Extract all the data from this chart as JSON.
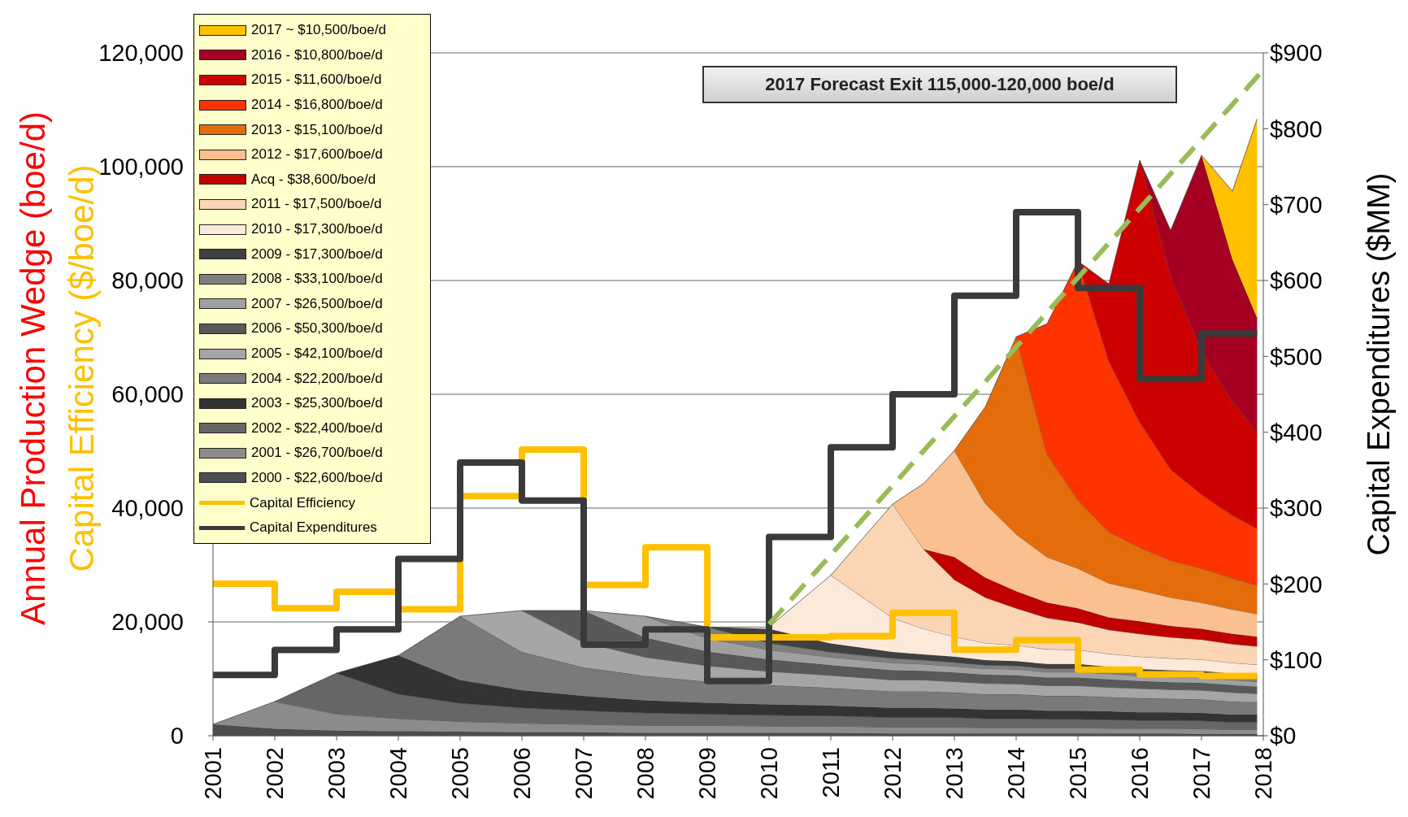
{
  "chart_data": {
    "type": "area",
    "stacked": true,
    "ylabel": "Annual Production Wedge (boe/d)",
    "y2label": "Capital Expenditures ($MM)",
    "annotations": [
      "Capital Efficiency ($/boe/d)",
      "2017 Forecast Exit 115,000-120,000 boe/d"
    ],
    "x": [
      2001,
      2002,
      2003,
      2004,
      2005,
      2006,
      2007,
      2008,
      2009,
      2010,
      2011,
      2012,
      2012.5,
      2013,
      2013.5,
      2014,
      2014.5,
      2015,
      2015.5,
      2016,
      2016.5,
      2017,
      2017.5,
      2017.9
    ],
    "xlim": [
      2001,
      2018
    ],
    "xticks": [
      2001,
      2002,
      2003,
      2004,
      2005,
      2006,
      2007,
      2008,
      2009,
      2010,
      2011,
      2012,
      2013,
      2014,
      2015,
      2016,
      2017,
      2018
    ],
    "ylim": [
      0,
      120000
    ],
    "yticks": [
      0,
      {
        "value": 20000,
        "label": "20,000"
      },
      {
        "value": 40000,
        "label": "40,000"
      },
      {
        "value": 60000,
        "label": "60,000"
      },
      {
        "value": 80000,
        "label": "80,000"
      },
      {
        "value": 100000,
        "label": "100,000"
      },
      {
        "value": 120000,
        "label": "120,000"
      }
    ],
    "y2lim": [
      0,
      900
    ],
    "y2ticks": [
      {
        "value": 0,
        "label": "$0"
      },
      {
        "value": 100,
        "label": "$100"
      },
      {
        "value": 200,
        "label": "$200"
      },
      {
        "value": 300,
        "label": "$300"
      },
      {
        "value": 400,
        "label": "$400"
      },
      {
        "value": 500,
        "label": "$500"
      },
      {
        "value": 600,
        "label": "$600"
      },
      {
        "value": 700,
        "label": "$700"
      },
      {
        "value": 800,
        "label": "$800"
      },
      {
        "value": 900,
        "label": "$900"
      }
    ],
    "grid": "y",
    "legend": "top left",
    "marker": "none",
    "series": [
      {
        "name": "2000 - $22,600/boe/d",
        "color": "#4d4d4d",
        "values": [
          2000,
          1200,
          900,
          800,
          700,
          600,
          600,
          500,
          500,
          500,
          500,
          400,
          400,
          400,
          400,
          400,
          400,
          400,
          400,
          400,
          400,
          300,
          300,
          300
        ]
      },
      {
        "name": "2001 - $26,700/boe/d",
        "color": "#8c8c8c",
        "values": [
          0,
          4800,
          2900,
          2200,
          1800,
          1600,
          1400,
          1300,
          1300,
          1200,
          1200,
          1100,
          1100,
          1100,
          1000,
          1000,
          1000,
          1000,
          900,
          900,
          900,
          900,
          800,
          800
        ]
      },
      {
        "name": "2002 - $22,400/boe/d",
        "color": "#666666",
        "values": [
          null,
          0,
          7200,
          4300,
          3200,
          2700,
          2400,
          2200,
          2000,
          1900,
          1800,
          1700,
          1700,
          1700,
          1600,
          1600,
          1500,
          1500,
          1500,
          1400,
          1400,
          1400,
          1300,
          1300
        ]
      },
      {
        "name": "2003 - $25,300/boe/d",
        "color": "#333333",
        "values": [
          null,
          null,
          0,
          6800,
          4100,
          3100,
          2600,
          2200,
          2000,
          1900,
          1800,
          1700,
          1700,
          1600,
          1600,
          1600,
          1500,
          1500,
          1500,
          1400,
          1400,
          1400,
          1300,
          1300
        ]
      },
      {
        "name": "2004 - $22,200/boe/d",
        "color": "#7a7a7a",
        "values": [
          null,
          null,
          null,
          0,
          11200,
          6700,
          5000,
          4300,
          3700,
          3400,
          3100,
          2900,
          2900,
          2800,
          2700,
          2700,
          2600,
          2600,
          2500,
          2500,
          2400,
          2400,
          2300,
          2200
        ]
      },
      {
        "name": "2005 - $42,100/boe/d",
        "color": "#a6a6a6",
        "values": [
          null,
          null,
          null,
          null,
          0,
          7300,
          4400,
          3300,
          2800,
          2400,
          2200,
          2000,
          2000,
          1900,
          1900,
          1800,
          1800,
          1800,
          1700,
          1700,
          1600,
          1600,
          1600,
          1500
        ]
      },
      {
        "name": "2006 - $50,300/boe/d",
        "color": "#595959",
        "values": [
          null,
          null,
          null,
          null,
          null,
          0,
          5600,
          3400,
          2500,
          2100,
          1800,
          1700,
          1600,
          1600,
          1500,
          1500,
          1400,
          1400,
          1400,
          1300,
          1300,
          1300,
          1300,
          1200
        ]
      },
      {
        "name": "2007 - $26,500/boe/d",
        "color": "#a0a0a0",
        "values": [
          null,
          null,
          null,
          null,
          null,
          null,
          0,
          3800,
          2300,
          1700,
          1400,
          1300,
          1200,
          1100,
          1100,
          1100,
          1000,
          1000,
          1000,
          900,
          900,
          900,
          900,
          900
        ]
      },
      {
        "name": "2008 - $33,100/boe/d",
        "color": "#7f7f7f",
        "values": [
          null,
          null,
          null,
          null,
          null,
          null,
          null,
          0,
          2000,
          1200,
          900,
          800,
          700,
          700,
          600,
          600,
          600,
          600,
          500,
          500,
          500,
          500,
          500,
          500
        ]
      },
      {
        "name": "2009 - $17,300/boe/d",
        "color": "#404040",
        "values": [
          null,
          null,
          null,
          null,
          null,
          null,
          null,
          null,
          0,
          2500,
          1500,
          1100,
          1000,
          1000,
          900,
          800,
          800,
          800,
          700,
          700,
          700,
          700,
          600,
          600
        ]
      },
      {
        "name": "2010 - $17,300/boe/d",
        "color": "#fde9d9",
        "values": [
          null,
          null,
          null,
          null,
          null,
          null,
          null,
          null,
          0,
          300,
          12000,
          6000,
          4500,
          3500,
          3000,
          2800,
          2600,
          2500,
          2300,
          2200,
          2100,
          2000,
          1900,
          1900
        ]
      },
      {
        "name": "2011 - $17,500/boe/d",
        "color": "#fcd5b5",
        "values": [
          null,
          null,
          null,
          null,
          null,
          null,
          null,
          null,
          null,
          null,
          0,
          20000,
          14000,
          10000,
          8000,
          6500,
          5500,
          4800,
          4200,
          4000,
          3700,
          3500,
          3300,
          3200
        ]
      },
      {
        "name": "Acq - $38,600/boe/d",
        "color": "#c00000",
        "values": [
          null,
          null,
          null,
          null,
          null,
          null,
          null,
          null,
          null,
          null,
          null,
          null,
          0,
          4000,
          3500,
          3000,
          2700,
          2500,
          2200,
          2200,
          2000,
          1900,
          1800,
          1700
        ]
      },
      {
        "name": "2012 - $17,600/boe/d",
        "color": "#fac090",
        "values": [
          null,
          null,
          null,
          null,
          null,
          null,
          null,
          null,
          null,
          null,
          null,
          0,
          11500,
          18700,
          13000,
          10000,
          8000,
          7000,
          6000,
          5500,
          5000,
          4600,
          4300,
          4000
        ]
      },
      {
        "name": "2013 - $15,100/boe/d",
        "color": "#e46c0a",
        "values": [
          null,
          null,
          null,
          null,
          null,
          null,
          null,
          null,
          null,
          null,
          null,
          null,
          null,
          0,
          17000,
          34700,
          18000,
          12000,
          9000,
          7500,
          6500,
          6000,
          5500,
          5000
        ]
      },
      {
        "name": "2014 - $16,800/boe/d",
        "color": "#ff3300",
        "values": [
          null,
          null,
          null,
          null,
          null,
          null,
          null,
          null,
          null,
          null,
          null,
          null,
          null,
          null,
          null,
          0,
          23000,
          42000,
          30000,
          22000,
          16000,
          13000,
          11000,
          10000
        ]
      },
      {
        "name": "2015 - $11,600/boe/d",
        "color": "#cc0000",
        "values": [
          null,
          null,
          null,
          null,
          null,
          null,
          null,
          null,
          null,
          null,
          null,
          null,
          null,
          null,
          null,
          null,
          null,
          0,
          13600,
          46000,
          34000,
          25000,
          20000,
          17000
        ]
      },
      {
        "name": "2016 - $10,800/boe/d",
        "color": "#a50021",
        "values": [
          null,
          null,
          null,
          null,
          null,
          null,
          null,
          null,
          null,
          null,
          null,
          null,
          null,
          null,
          null,
          null,
          null,
          null,
          null,
          0,
          8000,
          34600,
          25000,
          20000
        ]
      },
      {
        "name": "2017 ~ $10,500/boe/d",
        "color": "#ffc000",
        "values": [
          null,
          null,
          null,
          null,
          null,
          null,
          null,
          null,
          null,
          null,
          null,
          null,
          null,
          null,
          null,
          null,
          null,
          null,
          null,
          null,
          null,
          0,
          12000,
          35000
        ]
      },
      {
        "name": "Capital Efficiency",
        "type": "step",
        "color": "#ffc000",
        "x": [
          2001,
          2002,
          2003,
          2004,
          2005,
          2006,
          2007,
          2008,
          2009,
          2010,
          2011,
          2012,
          2013,
          2014,
          2015,
          2016,
          2017,
          2017.9
        ],
        "values": [
          26700,
          22400,
          25300,
          22200,
          42100,
          50300,
          26500,
          33100,
          17300,
          17300,
          17500,
          21600,
          15100,
          16800,
          11600,
          10800,
          10500,
          10500
        ]
      },
      {
        "name": "Capital Expenditures",
        "type": "step",
        "axis": "y2",
        "color": "#3a3a3a",
        "x": [
          2001,
          2002,
          2003,
          2004,
          2005,
          2006,
          2007,
          2008,
          2009,
          2010,
          2011,
          2012,
          2013,
          2014,
          2015,
          2016,
          2017,
          2017.9
        ],
        "values": [
          80,
          113,
          140,
          233,
          360,
          310,
          120,
          140,
          72,
          262,
          380,
          450,
          580,
          690,
          590,
          470,
          530,
          530
        ]
      },
      {
        "type": "line",
        "line_style": "dashed",
        "color": "#9bbb59",
        "x": [
          2010,
          2018
        ],
        "values": [
          19600,
          117000
        ]
      }
    ]
  }
}
